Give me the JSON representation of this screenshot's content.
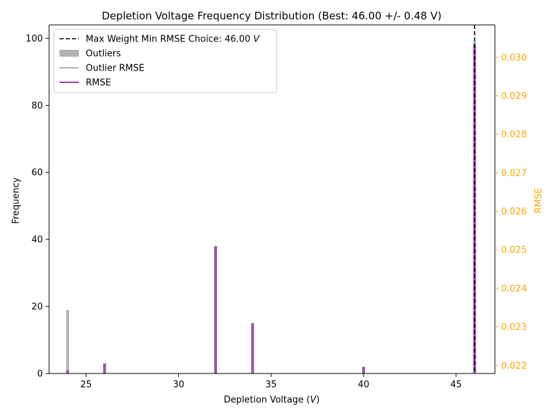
{
  "chart_data": {
    "type": "bar",
    "title": "Depletion Voltage Frequency Distribution (Best: 46.00 +/- 0.48 V)",
    "xlabel": "Depletion Voltage (V)",
    "ylabel": "Frequency",
    "y2label": "RMSE",
    "xlim": [
      23,
      47.1
    ],
    "ylim": [
      0,
      104
    ],
    "y2lim": [
      0.02179,
      0.03084
    ],
    "x_ticks": [
      25,
      30,
      35,
      40,
      45
    ],
    "y_ticks": [
      0,
      20,
      40,
      60,
      80,
      100
    ],
    "y2_ticks": [
      0.022,
      0.023,
      0.024,
      0.025,
      0.026,
      0.027,
      0.028,
      0.029,
      0.03
    ],
    "y2_tick_labels": [
      "0.022",
      "0.023",
      "0.024",
      "0.025",
      "0.026",
      "0.027",
      "0.028",
      "0.029",
      "0.030"
    ],
    "grid": false,
    "legend_position": "top-left",
    "series": [
      {
        "name": "Outliers",
        "kind": "bar",
        "color": "#b3b3b3",
        "points": [
          {
            "x": 24,
            "y": 19
          },
          {
            "x": 26,
            "y": 3
          },
          {
            "x": 32,
            "y": 38
          },
          {
            "x": 34,
            "y": 15
          },
          {
            "x": 40,
            "y": 2
          },
          {
            "x": 46,
            "y": 99
          }
        ]
      },
      {
        "name": "Outlier RMSE",
        "kind": "line",
        "color": "#999999",
        "points": [
          {
            "x": 24,
            "y": 0.0219
          },
          {
            "x": 24,
            "y": 0.0219
          }
        ]
      },
      {
        "name": "RMSE",
        "kind": "bar",
        "color": "#9b4fa8",
        "points": [
          {
            "x": 24,
            "y": 1
          },
          {
            "x": 26,
            "y": 3
          },
          {
            "x": 32,
            "y": 38
          },
          {
            "x": 34,
            "y": 15
          },
          {
            "x": 40,
            "y": 2
          },
          {
            "x": 46,
            "y": 98
          }
        ]
      }
    ],
    "reference_line": {
      "name": "Max Weight Min RMSE Choice: 46.00",
      "name_unit": "V",
      "x": 46.0,
      "style": "dashed",
      "color": "#000000"
    },
    "colors": {
      "right_axis": "#ffa500",
      "rmse_line": "#800080"
    }
  }
}
